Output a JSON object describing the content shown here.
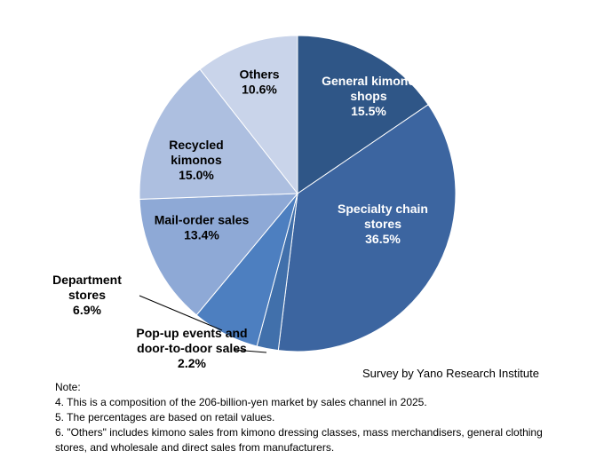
{
  "chart_data": {
    "type": "pie",
    "title": "",
    "unit": "%",
    "start": "12 o'clock",
    "direction": "clockwise",
    "slices": [
      {
        "name": "General kimono shops",
        "label_lines": [
          "General kimono",
          "shops"
        ],
        "value": 15.5,
        "display": "15.5%",
        "color": "#2f5687",
        "label_color": "#ffffff"
      },
      {
        "name": "Specialty chain stores",
        "label_lines": [
          "Specialty chain",
          "stores"
        ],
        "value": 36.5,
        "display": "36.5%",
        "color": "#3c65a0",
        "label_color": "#ffffff"
      },
      {
        "name": "Pop-up events and door-to-door sales",
        "label_lines": [
          "Pop-up events and",
          "door-to-door sales"
        ],
        "value": 2.2,
        "display": "2.2%",
        "color": "#4170ab",
        "label_color": "#000000"
      },
      {
        "name": "Department stores",
        "label_lines": [
          "Department",
          "stores"
        ],
        "value": 6.9,
        "display": "6.9%",
        "color": "#4d7fc0",
        "label_color": "#000000"
      },
      {
        "name": "Mail-order sales",
        "label_lines": [
          "Mail-order sales"
        ],
        "value": 13.4,
        "display": "13.4%",
        "color": "#8ea9d6",
        "label_color": "#000000"
      },
      {
        "name": "Recycled kimonos",
        "label_lines": [
          "Recycled",
          "kimonos"
        ],
        "value": 15.0,
        "display": "15.0%",
        "color": "#adbfe0",
        "label_color": "#000000"
      },
      {
        "name": "Others",
        "label_lines": [
          "Others"
        ],
        "value": 10.6,
        "display": "10.6%",
        "color": "#c9d4ea",
        "label_color": "#000000"
      }
    ]
  },
  "source": "Survey by Yano Research Institute",
  "notes": {
    "heading": "Note:",
    "lines": [
      "4. This is a composition of the 206-billion-yen market by sales channel in 2025.",
      "5. The percentages are based on retail values.",
      "6. \"Others\" includes kimono sales from kimono dressing classes, mass merchandisers, general clothing",
      "stores, and wholesale and direct sales from manufacturers."
    ]
  }
}
